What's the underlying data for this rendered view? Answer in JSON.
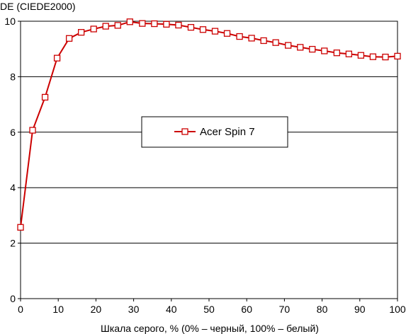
{
  "chart_data": {
    "type": "line",
    "title": "",
    "ylabel": "DE (CIEDE2000)",
    "xlabel": "Шкала серого, % (0% – черный, 100% – белый)",
    "xlim": [
      0,
      100
    ],
    "ylim": [
      0,
      10
    ],
    "xticks": [
      0,
      10,
      20,
      30,
      40,
      50,
      60,
      70,
      80,
      90,
      100
    ],
    "yticks": [
      0,
      2,
      4,
      6,
      8,
      10
    ],
    "grid": "horizontal",
    "legend_position": "center",
    "series": [
      {
        "name": "Acer Spin 7",
        "color": "#cc0000",
        "marker": "open-square",
        "x": [
          0,
          3.2,
          6.5,
          9.7,
          12.9,
          16.1,
          19.4,
          22.6,
          25.8,
          29.0,
          32.3,
          35.5,
          38.7,
          41.9,
          45.2,
          48.4,
          51.6,
          54.8,
          58.1,
          61.3,
          64.5,
          67.7,
          71.0,
          74.2,
          77.4,
          80.6,
          83.9,
          87.1,
          90.3,
          93.5,
          96.8,
          100
        ],
        "y": [
          2.57,
          6.07,
          7.26,
          8.67,
          9.38,
          9.6,
          9.72,
          9.82,
          9.85,
          9.98,
          9.92,
          9.91,
          9.89,
          9.86,
          9.78,
          9.7,
          9.64,
          9.56,
          9.45,
          9.39,
          9.3,
          9.23,
          9.13,
          9.06,
          8.99,
          8.93,
          8.86,
          8.82,
          8.77,
          8.72,
          8.71,
          8.74
        ]
      }
    ]
  }
}
